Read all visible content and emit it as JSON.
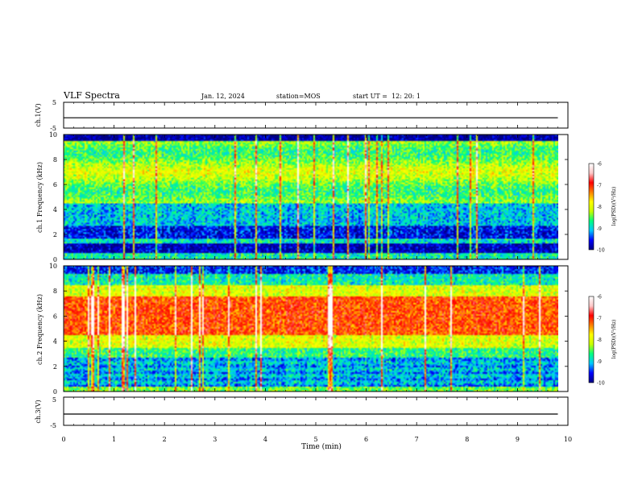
{
  "header": {
    "title": "VLF Spectra",
    "date": "Jan. 12, 2024",
    "station": "station=MOS",
    "start_ut": "start UT =  12: 20: 1"
  },
  "chart_data": [
    {
      "type": "line",
      "panel": "ch1-waveform",
      "ylabel": "ch.1(V)",
      "ylim": [
        -5,
        5
      ],
      "y_ticks": [
        "5",
        "-5"
      ],
      "x": [
        0,
        1,
        2,
        3,
        4,
        5,
        6,
        7,
        8,
        9,
        9.8
      ],
      "values": [
        -1,
        -1,
        -1,
        -1,
        -1,
        -1,
        -1,
        -1,
        -1,
        -1,
        -1
      ]
    },
    {
      "type": "heatmap",
      "panel": "ch1-spectrogram",
      "ylabel": "ch.1 Frequency (kHz)",
      "ylim": [
        0,
        10
      ],
      "y_ticks": [
        "0",
        "2",
        "4",
        "6",
        "8",
        "10"
      ],
      "xlim": [
        0,
        9.8
      ],
      "colorbar": {
        "label": "log(PSD)(V²/Hz)",
        "range": [
          -10,
          -6
        ],
        "ticks": [
          "-6",
          "-7",
          "-8",
          "-9",
          "-10"
        ]
      }
    },
    {
      "type": "heatmap",
      "panel": "ch2-spectrogram",
      "ylabel": "ch.2 Frequency (kHz)",
      "ylim": [
        0,
        10
      ],
      "y_ticks": [
        "0",
        "2",
        "4",
        "6",
        "8",
        "10"
      ],
      "xlim": [
        0,
        9.8
      ],
      "colorbar": {
        "label": "log(PSD)(V²/Hz)",
        "range": [
          -10,
          -6
        ],
        "ticks": [
          "-6",
          "-7",
          "-8",
          "-9",
          "-10"
        ]
      }
    },
    {
      "type": "line",
      "panel": "ch3-waveform",
      "ylabel": "ch.3(V)",
      "ylim": [
        -5,
        5
      ],
      "y_ticks": [
        "5",
        "-5"
      ],
      "x": [
        0,
        1,
        2,
        3,
        4,
        5,
        6,
        7,
        8,
        9,
        9.8
      ],
      "values": [
        -1,
        -1,
        -1,
        -1,
        -1,
        -1,
        -1,
        -1,
        -1,
        -1,
        -1
      ]
    }
  ],
  "x_axis": {
    "label": "Time (min)",
    "xlim": [
      0,
      10
    ],
    "ticks": [
      "0",
      "1",
      "2",
      "3",
      "4",
      "5",
      "6",
      "7",
      "8",
      "9",
      "10"
    ]
  },
  "colorbar_gradient": [
    "#000080",
    "#0000ff",
    "#00c8ff",
    "#00ff80",
    "#c8ff00",
    "#ffff00",
    "#ff8000",
    "#ff0000",
    "#ffc8c8",
    "#ffffff"
  ]
}
